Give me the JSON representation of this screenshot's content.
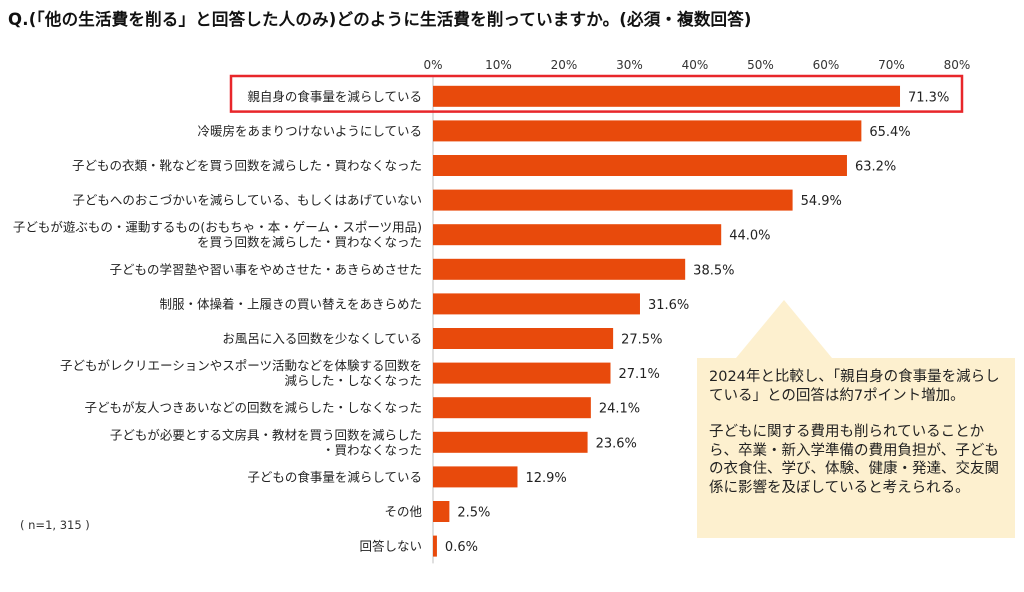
{
  "title": "Q.(「他の生活費を削る」と回答した人のみ)どのように生活費を削っていますか。(必須・複数回答)",
  "note": "( n=1, 315 )",
  "callout": {
    "paragraph1": "2024年と比較し、「親自身の食事量を減らしている」との回答は約7ポイント増加。",
    "paragraph2": "子どもに関する費用も削られていることから、卒業・新入学準備の費用負担が、子どもの衣食住、学び、体験、健康・発達、交友関係に影響を及ぼしていると考えられる。"
  },
  "colors": {
    "bar": "#e84a0c",
    "highlight": "#e8262a",
    "callout_bg": "#fdf0cf"
  },
  "chart_data": {
    "type": "bar",
    "orientation": "horizontal",
    "categories": [
      [
        "親自身の食事量を減らしている"
      ],
      [
        "冷暖房をあまりつけないようにしている"
      ],
      [
        "子どもの衣類・靴などを買う回数を減らした・買わなくなった"
      ],
      [
        "子どもへのおこづかいを減らしている、もしくはあげていない"
      ],
      [
        "子どもが遊ぶもの・運動するもの(おもちゃ・本・ゲーム・スポーツ用品)",
        "を買う回数を減らした・買わなくなった"
      ],
      [
        "子どもの学習塾や習い事をやめさせた・あきらめさせた"
      ],
      [
        "制服・体操着・上履きの買い替えをあきらめた"
      ],
      [
        "お風呂に入る回数を少なくしている"
      ],
      [
        "子どもがレクリエーションやスポーツ活動などを体験する回数を",
        "減らした・しなくなった"
      ],
      [
        "子どもが友人つきあいなどの回数を減らした・しなくなった"
      ],
      [
        "子どもが必要とする文房具・教材を買う回数を減らした",
        "・買わなくなった"
      ],
      [
        "子どもの食事量を減らしている"
      ],
      [
        "その他"
      ],
      [
        "回答しない"
      ]
    ],
    "values": [
      71.3,
      65.4,
      63.2,
      54.9,
      44.0,
      38.5,
      31.6,
      27.5,
      27.1,
      24.1,
      23.6,
      12.9,
      2.5,
      0.6
    ],
    "value_labels": [
      "71.3%",
      "65.4%",
      "63.2%",
      "54.9%",
      "44.0%",
      "38.5%",
      "31.6%",
      "27.5%",
      "27.1%",
      "24.1%",
      "23.6%",
      "12.9%",
      "2.5%",
      "0.6%"
    ],
    "xticks": [
      "0%",
      "10%",
      "20%",
      "30%",
      "40%",
      "50%",
      "60%",
      "70%",
      "80%"
    ],
    "xlim": [
      0,
      80
    ],
    "highlighted_index": 0,
    "grid": false,
    "legend": "none"
  }
}
